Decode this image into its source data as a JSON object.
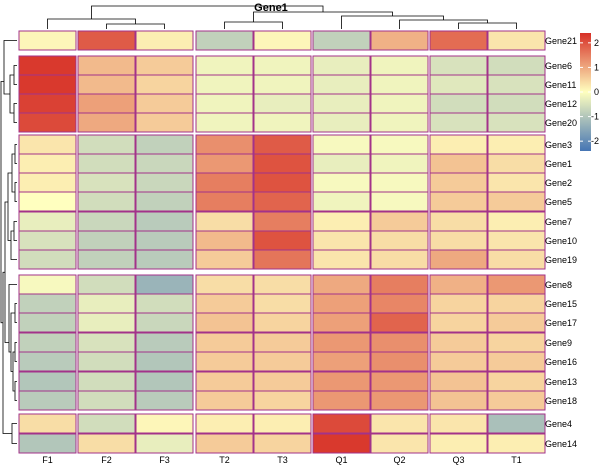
{
  "chart_data": {
    "type": "heatmap",
    "title": "Gene1",
    "columns": [
      "F1",
      "F2",
      "F3",
      "T2",
      "T3",
      "Q1",
      "Q2",
      "Q3",
      "T1"
    ],
    "rows": [
      "Gene21",
      "Gene6",
      "Gene11",
      "Gene12",
      "Gene20",
      "Gene3",
      "Gene1",
      "Gene2",
      "Gene5",
      "Gene7",
      "Gene10",
      "Gene19",
      "Gene8",
      "Gene15",
      "Gene17",
      "Gene9",
      "Gene16",
      "Gene13",
      "Gene18",
      "Gene4",
      "Gene14"
    ],
    "column_groups": [
      3,
      2,
      4
    ],
    "row_groups": [
      1,
      4,
      7,
      7,
      2
    ],
    "values": [
      [
        0.1,
        1.9,
        0.2,
        -0.8,
        0.1,
        -0.8,
        0.9,
        1.7,
        0.3
      ],
      [
        2.3,
        0.8,
        0.6,
        -0.2,
        -0.2,
        -0.3,
        -0.2,
        -0.5,
        -0.6
      ],
      [
        2.3,
        0.8,
        0.5,
        -0.2,
        -0.2,
        -0.3,
        -0.2,
        -0.4,
        -0.5
      ],
      [
        2.2,
        1.1,
        0.6,
        -0.2,
        -0.3,
        -0.3,
        -0.2,
        -0.6,
        -0.6
      ],
      [
        2.1,
        1.0,
        0.6,
        -0.2,
        -0.2,
        -0.3,
        -0.2,
        -0.5,
        -0.5
      ],
      [
        0.3,
        -0.6,
        -0.8,
        1.3,
        1.9,
        -0.1,
        -0.1,
        0.2,
        0.2
      ],
      [
        0.2,
        -0.6,
        -0.7,
        1.2,
        2.0,
        -0.3,
        -0.2,
        0.7,
        0.4
      ],
      [
        0.2,
        -0.5,
        -0.7,
        1.5,
        2.0,
        -0.1,
        -0.1,
        0.6,
        0.3
      ],
      [
        0.0,
        -0.6,
        -0.8,
        1.5,
        1.8,
        -0.2,
        -0.1,
        0.6,
        0.6
      ],
      [
        -0.3,
        -0.7,
        -0.9,
        0.4,
        1.5,
        0.2,
        0.6,
        0.4,
        0.2
      ],
      [
        -0.5,
        -0.8,
        -0.9,
        0.8,
        2.0,
        0.3,
        0.4,
        0.4,
        0.3
      ],
      [
        -0.6,
        -0.8,
        -0.9,
        0.6,
        1.6,
        0.3,
        0.4,
        1.0,
        0.4
      ],
      [
        -0.1,
        -0.6,
        -1.3,
        0.4,
        0.4,
        1.0,
        1.5,
        0.9,
        1.2
      ],
      [
        -0.8,
        -0.3,
        -0.6,
        0.6,
        0.4,
        1.1,
        1.4,
        0.5,
        0.5
      ],
      [
        -0.8,
        -0.3,
        -0.7,
        0.7,
        0.5,
        1.1,
        1.8,
        0.5,
        0.6
      ],
      [
        -0.8,
        -0.5,
        -0.9,
        0.6,
        0.6,
        1.2,
        1.3,
        0.6,
        0.5
      ],
      [
        -0.9,
        -0.6,
        -1.0,
        0.6,
        0.6,
        1.1,
        1.3,
        0.6,
        0.6
      ],
      [
        -1.0,
        -0.6,
        -1.0,
        0.6,
        0.6,
        1.2,
        1.2,
        0.7,
        0.5
      ],
      [
        -0.9,
        -0.6,
        -0.9,
        0.6,
        0.5,
        1.2,
        1.2,
        0.7,
        0.6
      ],
      [
        0.4,
        -0.6,
        0.1,
        0.2,
        0.2,
        2.1,
        0.3,
        0.3,
        -1.1
      ],
      [
        -1.0,
        0.4,
        -0.3,
        0.6,
        0.5,
        2.3,
        0.3,
        0.2,
        0.2
      ]
    ],
    "color_scale": {
      "min": -2.4,
      "mid": 0,
      "max": 2.4,
      "low_color": "#4575b4",
      "mid_color": "#ffffbf",
      "high_color": "#d73027"
    },
    "legend": {
      "ticks": [
        2,
        1,
        0,
        -1,
        -2
      ],
      "tick_labels": [
        "2",
        "1",
        "0",
        "-1",
        "-2"
      ],
      "placement": "right"
    },
    "cell_border_color": "#a3328a",
    "dendrograms": {
      "rows": true,
      "columns": true,
      "line_color": "#000000"
    }
  }
}
